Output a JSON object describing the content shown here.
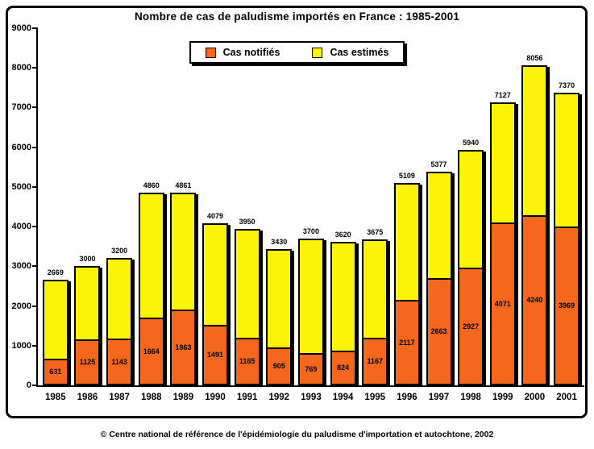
{
  "title": "Nombre de cas de paludisme importés en France : 1985-2001",
  "footer": "© Centre national de référence de l'épidémiologie du paludisme d'importation et autochtone, 2002",
  "legend": {
    "items": [
      {
        "label": "Cas notifiés",
        "color": "#F4671D"
      },
      {
        "label": "Cas estimés",
        "color": "#FBF408"
      }
    ]
  },
  "colors": {
    "notified_orange": "#F4671D",
    "estimated_yellow": "#FBF408",
    "outline": "#000000",
    "background": "#FFFFFF"
  },
  "chart_data": {
    "type": "bar",
    "stacked": true,
    "title": "Nombre de cas de paludisme importés en France : 1985-2001",
    "categories": [
      "1985",
      "1986",
      "1987",
      "1988",
      "1989",
      "1990",
      "1991",
      "1992",
      "1993",
      "1994",
      "1995",
      "1996",
      "1997",
      "1998",
      "1999",
      "2000",
      "2001"
    ],
    "series": [
      {
        "name": "Cas notifiés",
        "color": "#F4671D",
        "role": "bottom-segment",
        "values": [
          631,
          1125,
          1143,
          1664,
          1863,
          1491,
          1165,
          905,
          769,
          824,
          1167,
          2117,
          2663,
          2927,
          4071,
          4240,
          3969
        ]
      },
      {
        "name": "Cas estimés",
        "color": "#FBF408",
        "role": "bar-total",
        "values": [
          2669,
          3000,
          3200,
          4860,
          4861,
          4079,
          3950,
          3430,
          3700,
          3620,
          3675,
          5109,
          5377,
          5940,
          7127,
          8056,
          7370
        ]
      }
    ],
    "xlabel": "",
    "ylabel": "",
    "ylim": [
      0,
      9000
    ],
    "y_ticks": [
      0,
      1000,
      2000,
      3000,
      4000,
      5000,
      6000,
      7000,
      8000,
      9000
    ],
    "grid": false,
    "legend_position": "top-center",
    "bar_value_labels": true
  }
}
